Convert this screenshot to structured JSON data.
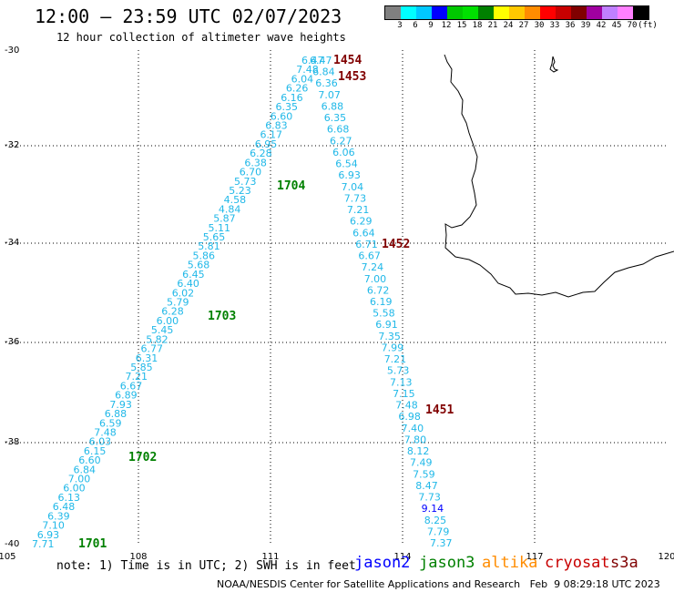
{
  "header": {
    "title": "12:00 — 23:59 UTC 02/07/2023",
    "subtitle": "12 hour collection of altimeter wave heights"
  },
  "color_scale": {
    "labels": [
      "3",
      "6",
      "9",
      "12",
      "15",
      "18",
      "21",
      "24",
      "27",
      "30",
      "33",
      "36",
      "39",
      "42",
      "45",
      "70",
      "(ft)"
    ],
    "colors": [
      "#808080",
      "#00ffff",
      "#00c8ff",
      "#0000ff",
      "#00c800",
      "#00e000",
      "#008000",
      "#ffff00",
      "#ffc800",
      "#ff8c00",
      "#ff0000",
      "#c80000",
      "#800000",
      "#a000a0",
      "#c080ff",
      "#ff80ff",
      "#000000"
    ]
  },
  "axes": {
    "lon_labels": [
      "105",
      "108",
      "111",
      "114",
      "117",
      "120"
    ],
    "lat_labels": [
      "-30",
      "-32",
      "-34",
      "-36",
      "-38",
      "-40"
    ]
  },
  "passes": [
    {
      "id": "1454",
      "color": "#800000"
    },
    {
      "id": "1453",
      "color": "#800000"
    },
    {
      "id": "1452",
      "color": "#800000"
    },
    {
      "id": "1451",
      "color": "#800000"
    },
    {
      "id": "1704",
      "color": "#008000"
    },
    {
      "id": "1703",
      "color": "#008000"
    },
    {
      "id": "1702",
      "color": "#008000"
    },
    {
      "id": "1701",
      "color": "#008000"
    }
  ],
  "measurements": {
    "track_jason3": [
      "7.71",
      "6.93",
      "7.10",
      "6.39",
      "6.48",
      "6.13",
      "6.00",
      "7.00",
      "6.84",
      "6.60",
      "6.15",
      "6.03",
      "7.48",
      "6.59",
      "6.88",
      "7.93",
      "6.89",
      "6.67",
      "7.21",
      "5.85",
      "6.31",
      "6.77",
      "5.82",
      "5.45",
      "6.00",
      "6.28",
      "5.79",
      "6.02",
      "6.40",
      "6.45",
      "5.68",
      "5.86",
      "5.81",
      "5.65",
      "5.11",
      "5.87",
      "4.84",
      "4.58",
      "5.23",
      "5.73",
      "6.70",
      "6.38",
      "6.28",
      "6.95",
      "6.17",
      "6.83",
      "6.60",
      "6.35",
      "6.16",
      "6.26",
      "6.04",
      "7.48",
      "6.47"
    ],
    "track_cryosat": [
      "7.37",
      "7.79",
      "8.25",
      "9.14",
      "7.73",
      "8.47",
      "7.59",
      "7.49",
      "8.12",
      "7.80",
      "7.40",
      "6.98",
      "7.48",
      "7.15",
      "7.13",
      "5.73",
      "7.21",
      "7.99",
      "7.35",
      "6.91",
      "5.58",
      "6.19",
      "6.72",
      "7.00",
      "7.24",
      "6.67",
      "6.71",
      "6.64",
      "6.29",
      "7.21",
      "7.73",
      "7.04",
      "6.93",
      "6.54",
      "6.06",
      "6.27",
      "6.68",
      "6.35",
      "6.88",
      "7.07",
      "6.36",
      "6.84",
      "6.47"
    ]
  },
  "footer": {
    "note": "note: 1) Time is in UTC; 2) SWH is in feet",
    "legend": [
      {
        "label": "jason2",
        "color": "#0000ff"
      },
      {
        "label": "jason3",
        "color": "#008000"
      },
      {
        "label": "altika",
        "color": "#ff8c00"
      },
      {
        "label": "cryosat",
        "color": "#c80000"
      },
      {
        "label": "s3a",
        "color": "#800000"
      }
    ],
    "credit": "NOAA/NESDIS Center for Satellite Applications and Research   Feb  9 08:29:18 UTC 2023"
  }
}
